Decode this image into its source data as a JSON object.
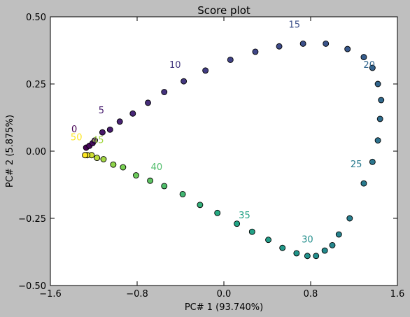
{
  "chart_data": {
    "type": "scatter",
    "title": "Score plot",
    "xlabel": "PC# 1 (93.740%)",
    "ylabel": "PC# 2 (5.875%)",
    "xlim": [
      -1.6,
      1.6
    ],
    "ylim": [
      -0.5,
      0.5
    ],
    "xticks": [
      -1.6,
      -0.8,
      0.0,
      0.8,
      1.6
    ],
    "xtick_labels": [
      "−1.6",
      "−0.8",
      "0.0",
      "0.8",
      "1.6"
    ],
    "yticks": [
      0.5,
      0.25,
      0.0,
      -0.25,
      -0.5
    ],
    "ytick_labels": [
      "0.50",
      "0.25",
      "0.00",
      "−0.25",
      "−0.50"
    ],
    "grid": false,
    "colormap": "viridis",
    "points": [
      {
        "x": -1.27,
        "y": 0.013
      },
      {
        "x": -1.24,
        "y": 0.02
      },
      {
        "x": -1.21,
        "y": 0.03
      },
      {
        "x": -1.19,
        "y": 0.04
      },
      {
        "x": -1.12,
        "y": 0.07
      },
      {
        "x": -1.05,
        "y": 0.08
      },
      {
        "x": -0.96,
        "y": 0.11
      },
      {
        "x": -0.84,
        "y": 0.14
      },
      {
        "x": -0.7,
        "y": 0.18
      },
      {
        "x": -0.55,
        "y": 0.22
      },
      {
        "x": -0.37,
        "y": 0.26
      },
      {
        "x": -0.17,
        "y": 0.3
      },
      {
        "x": 0.06,
        "y": 0.34
      },
      {
        "x": 0.29,
        "y": 0.37
      },
      {
        "x": 0.51,
        "y": 0.39
      },
      {
        "x": 0.73,
        "y": 0.4
      },
      {
        "x": 0.94,
        "y": 0.4
      },
      {
        "x": 1.14,
        "y": 0.38
      },
      {
        "x": 1.29,
        "y": 0.35
      },
      {
        "x": 1.37,
        "y": 0.31
      },
      {
        "x": 1.42,
        "y": 0.25
      },
      {
        "x": 1.45,
        "y": 0.19
      },
      {
        "x": 1.44,
        "y": 0.12
      },
      {
        "x": 1.42,
        "y": 0.04
      },
      {
        "x": 1.37,
        "y": -0.04
      },
      {
        "x": 1.29,
        "y": -0.12
      },
      {
        "x": 1.16,
        "y": -0.25
      },
      {
        "x": 1.06,
        "y": -0.31
      },
      {
        "x": 1.0,
        "y": -0.35
      },
      {
        "x": 0.93,
        "y": -0.37
      },
      {
        "x": 0.85,
        "y": -0.39
      },
      {
        "x": 0.77,
        "y": -0.39
      },
      {
        "x": 0.67,
        "y": -0.38
      },
      {
        "x": 0.54,
        "y": -0.36
      },
      {
        "x": 0.41,
        "y": -0.33
      },
      {
        "x": 0.26,
        "y": -0.3
      },
      {
        "x": 0.12,
        "y": -0.27
      },
      {
        "x": -0.06,
        "y": -0.23
      },
      {
        "x": -0.22,
        "y": -0.2
      },
      {
        "x": -0.38,
        "y": -0.16
      },
      {
        "x": -0.55,
        "y": -0.13
      },
      {
        "x": -0.68,
        "y": -0.11
      },
      {
        "x": -0.81,
        "y": -0.09
      },
      {
        "x": -0.93,
        "y": -0.06
      },
      {
        "x": -1.02,
        "y": -0.05
      },
      {
        "x": -1.11,
        "y": -0.03
      },
      {
        "x": -1.17,
        "y": -0.025
      },
      {
        "x": -1.22,
        "y": -0.015
      },
      {
        "x": -1.26,
        "y": -0.015
      },
      {
        "x": -1.28,
        "y": -0.015
      }
    ],
    "annotations": [
      {
        "text": "0",
        "x": -1.38,
        "y": 0.07,
        "index": 0
      },
      {
        "text": "5",
        "x": -1.13,
        "y": 0.14,
        "index": 5
      },
      {
        "text": "10",
        "x": -0.45,
        "y": 0.31,
        "index": 10
      },
      {
        "text": "15",
        "x": 0.65,
        "y": 0.46,
        "index": 15
      },
      {
        "text": "20",
        "x": 1.34,
        "y": 0.31,
        "index": 20
      },
      {
        "text": "25",
        "x": 1.22,
        "y": -0.06,
        "index": 25
      },
      {
        "text": "30",
        "x": 0.77,
        "y": -0.34,
        "index": 30
      },
      {
        "text": "35",
        "x": 0.19,
        "y": -0.25,
        "index": 35
      },
      {
        "text": "40",
        "x": -0.62,
        "y": -0.07,
        "index": 40
      },
      {
        "text": "45",
        "x": -1.16,
        "y": 0.03,
        "index": 45
      },
      {
        "text": "50",
        "x": -1.36,
        "y": 0.04,
        "index": 50
      }
    ]
  }
}
